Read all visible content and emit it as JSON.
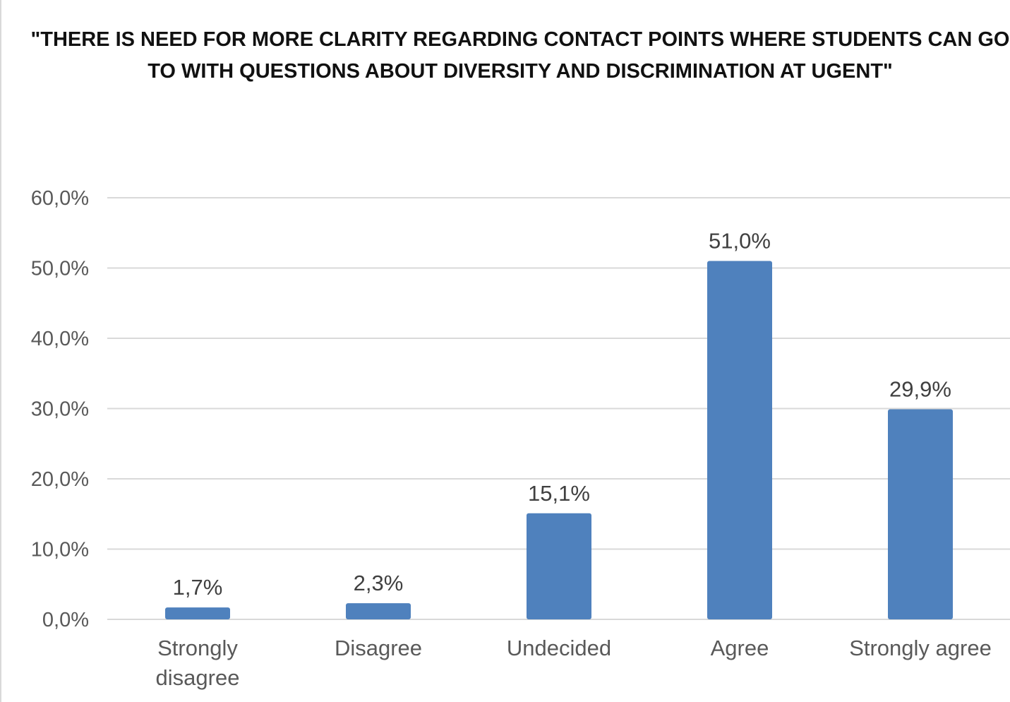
{
  "chart_data": {
    "type": "bar",
    "title": "\"THERE IS NEED FOR MORE CLARITY REGARDING CONTACT POINTS WHERE STUDENTS CAN GO TO  WITH QUESTIONS ABOUT DIVERSITY AND DISCRIMINATION AT UGENT\"",
    "categories": [
      [
        "Strongly",
        "disagree"
      ],
      [
        "Disagree"
      ],
      [
        "Undecided"
      ],
      [
        "Agree"
      ],
      [
        "Strongly agree"
      ]
    ],
    "values": [
      1.7,
      2.3,
      15.1,
      51.0,
      29.9
    ],
    "data_labels": [
      "1,7%",
      "2,3%",
      "15,1%",
      "51,0%",
      "29,9%"
    ],
    "y_ticks": [
      "0,0%",
      "10,0%",
      "20,0%",
      "30,0%",
      "40,0%",
      "50,0%",
      "60,0%"
    ],
    "ylim": [
      0,
      60
    ],
    "xlabel": "",
    "ylabel": "",
    "grid": true,
    "legend": "none",
    "bar_color": "#4f81bd",
    "grid_color": "#d9d9d9"
  }
}
